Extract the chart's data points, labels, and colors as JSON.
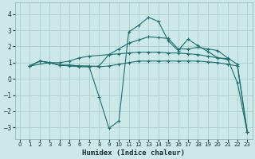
{
  "xlabel": "Humidex (Indice chaleur)",
  "background_color": "#cce8e8",
  "grid_color": "#aacece",
  "line_color": "#1a7070",
  "xlim": [
    -0.5,
    23.5
  ],
  "ylim": [
    -3.7,
    4.7
  ],
  "xticks": [
    0,
    1,
    2,
    3,
    4,
    5,
    6,
    7,
    8,
    9,
    10,
    11,
    12,
    13,
    14,
    15,
    16,
    17,
    18,
    19,
    20,
    21,
    22,
    23
  ],
  "yticks": [
    -3,
    -2,
    -1,
    0,
    1,
    2,
    3,
    4
  ],
  "line1_x": [
    1,
    3,
    4,
    5,
    6,
    7,
    10,
    11,
    12,
    13,
    14,
    15,
    16,
    17,
    18,
    19,
    20,
    21
  ],
  "line1_y": [
    0.8,
    1.0,
    1.0,
    1.1,
    1.3,
    1.4,
    1.55,
    1.6,
    1.65,
    1.65,
    1.65,
    1.6,
    1.6,
    1.55,
    1.5,
    1.4,
    1.3,
    1.2
  ],
  "line2_x": [
    1,
    2,
    3,
    4,
    5,
    6,
    7,
    8,
    9,
    10,
    11,
    12,
    13,
    14,
    15,
    16,
    17,
    18,
    19,
    20,
    21,
    22,
    23
  ],
  "line2_y": [
    0.8,
    1.1,
    1.0,
    0.85,
    0.85,
    0.8,
    0.8,
    0.75,
    0.8,
    0.9,
    1.0,
    1.1,
    1.1,
    1.1,
    1.1,
    1.1,
    1.1,
    1.1,
    1.05,
    1.0,
    0.9,
    0.8,
    -3.3
  ],
  "line3_x": [
    1,
    2,
    3,
    4,
    5,
    6,
    7,
    8,
    9,
    10,
    11,
    12,
    13,
    14,
    15,
    16,
    17,
    18,
    19,
    20,
    21,
    22,
    23
  ],
  "line3_y": [
    0.8,
    1.1,
    1.0,
    0.85,
    0.85,
    0.8,
    0.75,
    -1.1,
    -3.05,
    -2.6,
    2.9,
    3.3,
    3.8,
    3.55,
    2.35,
    1.75,
    2.45,
    2.05,
    1.7,
    1.3,
    1.25,
    -0.25,
    -3.3
  ],
  "line4_x": [
    1,
    2,
    3,
    4,
    5,
    6,
    7,
    8,
    9,
    10,
    11,
    12,
    13,
    14,
    15,
    16,
    17,
    18,
    19,
    20,
    21,
    22,
    23
  ],
  "line4_y": [
    0.8,
    1.1,
    1.0,
    0.85,
    0.8,
    0.75,
    0.75,
    0.8,
    1.5,
    1.85,
    2.2,
    2.4,
    2.6,
    2.55,
    2.5,
    1.85,
    1.85,
    1.95,
    1.85,
    1.75,
    1.3,
    0.9,
    -3.3
  ]
}
